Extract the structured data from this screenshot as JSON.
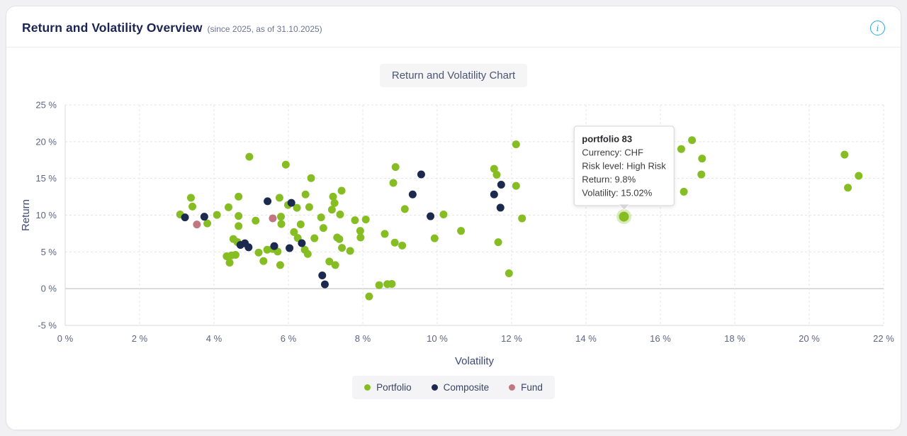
{
  "header": {
    "title": "Return and Volatility Overview",
    "subtitle": "(since 2025, as of 31.10.2025)",
    "info_icon": "i",
    "info_color": "#2ca6e0"
  },
  "chart_tab_label": "Return and Volatility Chart",
  "chart_data": {
    "type": "scatter",
    "xlabel": "Volatility",
    "ylabel": "Return",
    "xlim": [
      0,
      22
    ],
    "ylim": [
      -5,
      25
    ],
    "x_ticks": [
      0,
      2,
      4,
      6,
      8,
      10,
      12,
      14,
      16,
      18,
      20,
      22
    ],
    "y_ticks": [
      -5,
      0,
      5,
      10,
      15,
      20,
      25
    ],
    "tick_suffix": " %",
    "grid": "dashed",
    "legend_position": "bottom",
    "series": [
      {
        "name": "Portfolio",
        "color": "#85bd22",
        "points": [
          [
            3.09,
            10.1
          ],
          [
            3.38,
            12.36
          ],
          [
            3.42,
            11.17
          ],
          [
            3.82,
            8.88
          ],
          [
            4.08,
            10.04
          ],
          [
            4.39,
            11.07
          ],
          [
            4.66,
            12.52
          ],
          [
            4.66,
            9.89
          ],
          [
            4.66,
            8.52
          ],
          [
            4.95,
            17.95
          ],
          [
            5.12,
            9.25
          ],
          [
            4.34,
            4.41
          ],
          [
            4.42,
            3.54
          ],
          [
            4.47,
            4.53
          ],
          [
            4.52,
            6.76
          ],
          [
            4.58,
            4.6
          ],
          [
            4.63,
            6.34
          ],
          [
            5.2,
            4.91
          ],
          [
            5.33,
            3.76
          ],
          [
            5.43,
            5.3
          ],
          [
            5.57,
            5.4
          ],
          [
            5.71,
            5.04
          ],
          [
            5.78,
            3.21
          ],
          [
            5.76,
            12.36
          ],
          [
            5.8,
            9.79
          ],
          [
            5.81,
            8.8
          ],
          [
            5.93,
            16.87
          ],
          [
            5.99,
            11.39
          ],
          [
            6.15,
            7.7
          ],
          [
            6.23,
            11.0
          ],
          [
            6.25,
            6.9
          ],
          [
            6.33,
            8.75
          ],
          [
            6.44,
            5.3
          ],
          [
            6.46,
            12.82
          ],
          [
            6.52,
            4.72
          ],
          [
            6.56,
            11.1
          ],
          [
            6.61,
            15.04
          ],
          [
            6.7,
            6.86
          ],
          [
            6.88,
            9.7
          ],
          [
            6.94,
            8.25
          ],
          [
            7.1,
            3.69
          ],
          [
            7.17,
            10.75
          ],
          [
            7.2,
            12.52
          ],
          [
            7.24,
            11.65
          ],
          [
            7.26,
            3.21
          ],
          [
            7.31,
            6.96
          ],
          [
            7.37,
            6.74
          ],
          [
            7.39,
            10.1
          ],
          [
            7.43,
            13.33
          ],
          [
            7.44,
            5.55
          ],
          [
            7.66,
            5.14
          ],
          [
            7.79,
            9.31
          ],
          [
            7.93,
            7.86
          ],
          [
            7.94,
            6.96
          ],
          [
            8.08,
            9.41
          ],
          [
            8.17,
            -1.06
          ],
          [
            8.44,
            0.48
          ],
          [
            8.59,
            7.45
          ],
          [
            8.66,
            0.62
          ],
          [
            8.78,
            0.64
          ],
          [
            8.82,
            14.39
          ],
          [
            8.86,
            6.26
          ],
          [
            8.88,
            16.55
          ],
          [
            9.06,
            5.87
          ],
          [
            9.13,
            10.83
          ],
          [
            9.93,
            6.85
          ],
          [
            10.17,
            10.1
          ],
          [
            10.64,
            7.86
          ],
          [
            11.53,
            16.31
          ],
          [
            11.6,
            15.5
          ],
          [
            11.64,
            6.32
          ],
          [
            11.93,
            2.09
          ],
          [
            12.12,
            19.63
          ],
          [
            12.12,
            13.99
          ],
          [
            12.28,
            9.56
          ],
          [
            15.02,
            9.8
          ],
          [
            16.56,
            19.0
          ],
          [
            16.63,
            13.19
          ],
          [
            16.85,
            20.2
          ],
          [
            17.1,
            15.54
          ],
          [
            17.12,
            17.7
          ],
          [
            20.95,
            18.24
          ],
          [
            21.04,
            13.74
          ],
          [
            21.33,
            15.35
          ]
        ]
      },
      {
        "name": "Composite",
        "color": "#1b2a4e",
        "points": [
          [
            3.22,
            9.7
          ],
          [
            3.74,
            9.79
          ],
          [
            4.71,
            5.95
          ],
          [
            4.83,
            6.18
          ],
          [
            4.93,
            5.63
          ],
          [
            5.44,
            11.89
          ],
          [
            5.62,
            5.79
          ],
          [
            6.03,
            5.52
          ],
          [
            6.08,
            11.68
          ],
          [
            6.36,
            6.19
          ],
          [
            6.91,
            1.8
          ],
          [
            6.98,
            0.58
          ],
          [
            9.34,
            12.82
          ],
          [
            9.57,
            15.55
          ],
          [
            9.82,
            9.85
          ],
          [
            11.53,
            12.82
          ],
          [
            11.7,
            11.02
          ],
          [
            11.72,
            14.15
          ]
        ]
      },
      {
        "name": "Fund",
        "color": "#c0777e",
        "points": [
          [
            3.54,
            8.73
          ],
          [
            5.58,
            9.57
          ]
        ]
      }
    ],
    "highlight_point": {
      "series_index": 0,
      "x": 15.02,
      "y": 9.8
    },
    "tooltip": {
      "title": "portfolio 83",
      "lines": [
        "Currency: CHF",
        "Risk level: High Risk",
        "Return: 9.8%",
        "Volatility: 15.02%"
      ]
    },
    "colors": {
      "grid": "#e4e4e8",
      "zero_line": "#b9b9bf",
      "axis_line": "#d9d9de",
      "tick_text": "#5d6583",
      "axis_title": "#3d4a78"
    }
  }
}
